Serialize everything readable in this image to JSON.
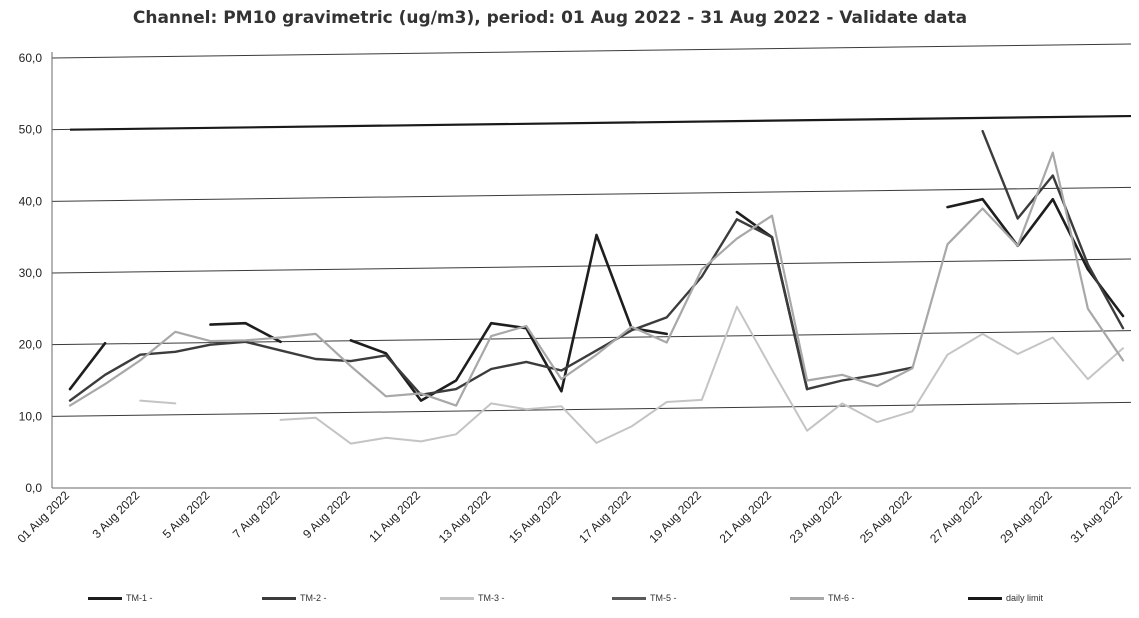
{
  "chart_data": {
    "type": "line",
    "title": "Channel: PM10 gravimetric (ug/m3), period: 01 Aug 2022 - 31 Aug 2022 - Validate data",
    "xlabel": "",
    "ylabel": "",
    "ylim": [
      0,
      60
    ],
    "y_ticks": [
      "0,0",
      "10,0",
      "20,0",
      "30,0",
      "40,0",
      "50,0",
      "60,0"
    ],
    "x": [
      1,
      2,
      3,
      4,
      5,
      6,
      7,
      8,
      9,
      10,
      11,
      12,
      13,
      14,
      15,
      16,
      17,
      18,
      19,
      20,
      21,
      22,
      23,
      24,
      25,
      26,
      27,
      28,
      29,
      30,
      31
    ],
    "x_tick_labels": [
      "01 Aug 2022",
      "3 Aug 2022",
      "5 Aug 2022",
      "7 Aug 2022",
      "9 Aug 2022",
      "11 Aug 2022",
      "13 Aug 2022",
      "15 Aug 2022",
      "17 Aug 2022",
      "19 Aug 2022",
      "21 Aug 2022",
      "23 Aug 2022",
      "25 Aug 2022",
      "27 Aug 2022",
      "29 Aug 2022",
      "31 Aug 2022"
    ],
    "grid": true,
    "legend_position": "bottom",
    "series": [
      {
        "name": "TM-1 -",
        "color": "#1e1e1e",
        "width": 2.6,
        "values": [
          13.8,
          20.2,
          null,
          null,
          22.8,
          23.0,
          20.4,
          null,
          20.6,
          18.8,
          12.2,
          15.0,
          23.0,
          22.3,
          13.5,
          35.3,
          22.3,
          21.5,
          null,
          38.5,
          35.0,
          13.8,
          null,
          null,
          null,
          39.2,
          40.3,
          33.8,
          40.3,
          30.5,
          24.0
        ]
      },
      {
        "name": "TM-2 -",
        "color": "#3c3c3c",
        "width": 2.4,
        "values": [
          12.2,
          15.8,
          18.6,
          19.0,
          20.0,
          20.4,
          19.2,
          18.0,
          17.7,
          18.5,
          13.0,
          13.8,
          16.6,
          17.6,
          16.4,
          19.2,
          22.0,
          23.8,
          29.5,
          37.5,
          35.0,
          13.8,
          15.0,
          15.8,
          16.8,
          null,
          49.8,
          37.6,
          43.6,
          31.2,
          22.3
        ]
      },
      {
        "name": "TM-3 -",
        "color": "#c4c4c4",
        "width": 2.0,
        "values": [
          null,
          null,
          12.2,
          11.8,
          null,
          null,
          9.5,
          9.8,
          6.2,
          7.0,
          6.5,
          7.5,
          11.8,
          11.0,
          11.4,
          6.3,
          8.6,
          12.0,
          12.3,
          25.3,
          16.5,
          8.0,
          11.8,
          9.2,
          10.7,
          18.6,
          21.5,
          18.7,
          21.0,
          15.2,
          19.5
        ]
      },
      {
        "name": "TM-5 -",
        "color": "#5a5a5a",
        "width": 2.2,
        "values": [
          null,
          null,
          null,
          null,
          null,
          null,
          null,
          null,
          null,
          null,
          null,
          null,
          null,
          null,
          null,
          null,
          null,
          null,
          null,
          null,
          null,
          null,
          null,
          null,
          null,
          null,
          null,
          null,
          null,
          null,
          19.8
        ]
      },
      {
        "name": "TM-6 -",
        "color": "#a8a8a8",
        "width": 2.2,
        "values": [
          11.5,
          14.5,
          17.8,
          21.8,
          20.5,
          20.6,
          21.0,
          21.5,
          17.0,
          12.8,
          13.2,
          11.5,
          21.2,
          22.6,
          15.2,
          18.6,
          22.5,
          20.3,
          30.5,
          34.8,
          38.0,
          15.0,
          15.8,
          14.2,
          16.7,
          34.0,
          39.0,
          33.8,
          46.8,
          25.0,
          17.8
        ]
      }
    ],
    "daily_limit": {
      "name": "daily limit",
      "color": "#1a1a1a",
      "start": 50.0,
      "end": 51.9
    }
  }
}
